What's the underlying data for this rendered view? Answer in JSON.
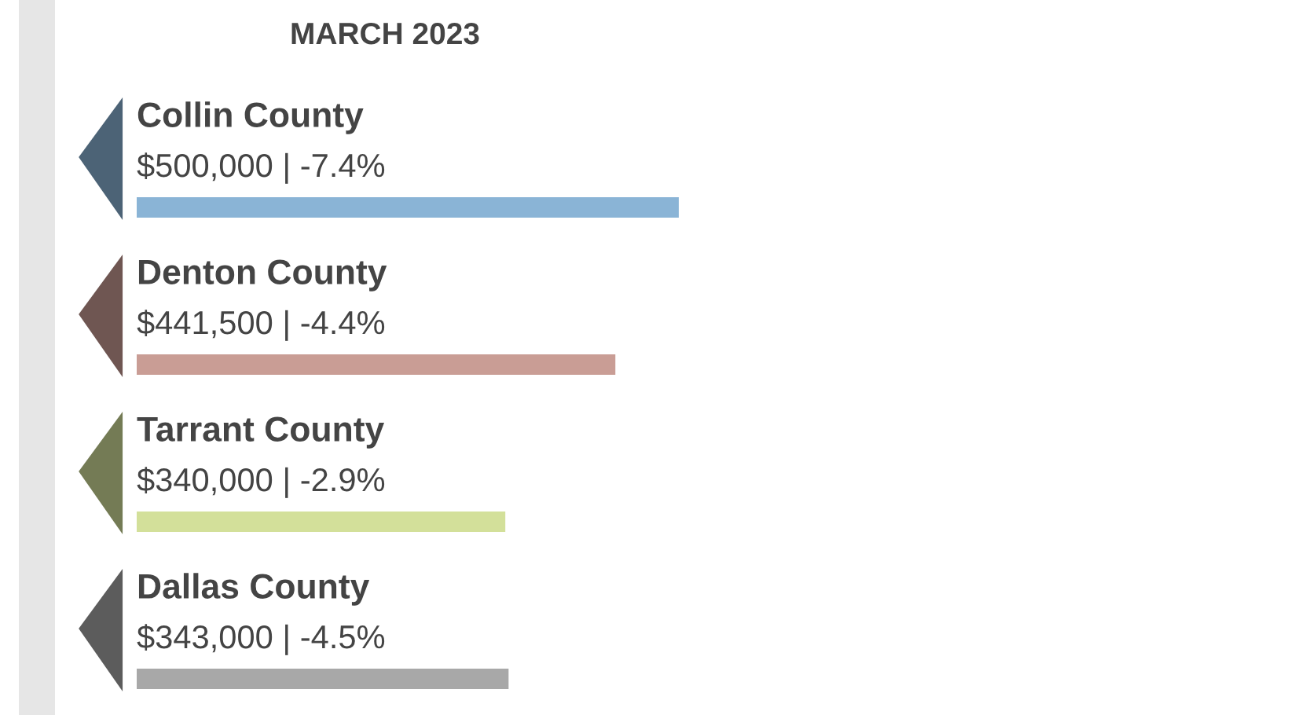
{
  "chart_data": {
    "type": "bar",
    "orientation": "horizontal",
    "title": "MARCH 2023",
    "categories": [
      "Collin County",
      "Denton County",
      "Tarrant County",
      "Dallas County"
    ],
    "values": [
      500000,
      441500,
      340000,
      343000
    ],
    "colors": [
      "#8ab4d6",
      "#c99d95",
      "#d3e09a",
      "#a8a8a8"
    ],
    "value_labels": [
      "$500,000 | -7.4%",
      "$441,500 | -4.4%",
      "$340,000 | -2.9%",
      "$343,000 | -4.5%"
    ]
  }
}
